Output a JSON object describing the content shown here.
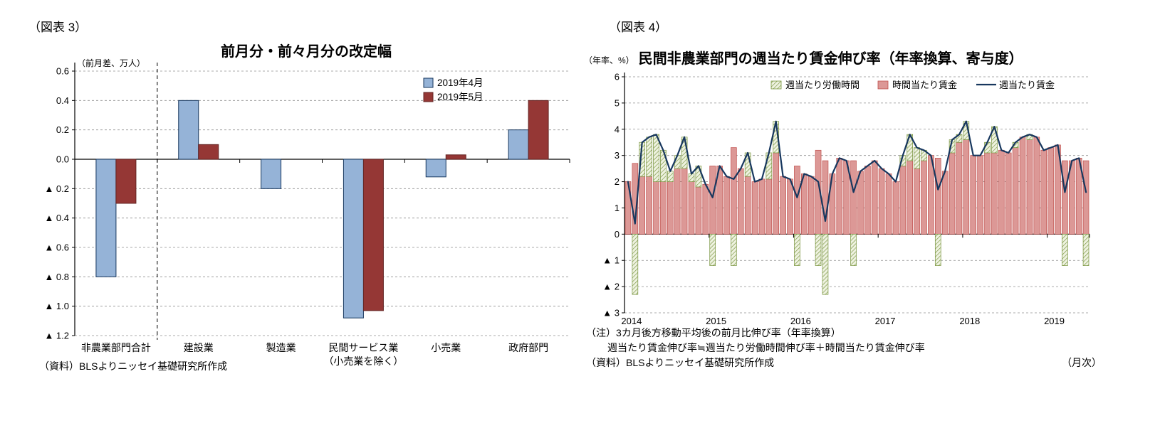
{
  "chart_data": [
    {
      "id": "fig3",
      "type": "bar",
      "panel_label": "（図表 3）",
      "title": "前月分・前々月分の改定幅",
      "y_axis_unit": "（前月差、万人）",
      "negative_prefix": "▲",
      "ylim": [
        -1.2,
        0.6
      ],
      "ytick_step": 0.2,
      "grid": true,
      "legend_position": "top-right",
      "separator_after_category": 0,
      "categories": [
        {
          "label": "非農業部門合計"
        },
        {
          "label": "建設業"
        },
        {
          "label": "製造業"
        },
        {
          "label": "民間サービス業",
          "sublabel": "（小売業を除く）"
        },
        {
          "label": "小売業"
        },
        {
          "label": "政府部門"
        }
      ],
      "series": [
        {
          "name": "2019年4月",
          "color": "#95b3d7",
          "border": "#17375e",
          "values": [
            -0.8,
            0.4,
            -0.2,
            -1.08,
            -0.12,
            0.2
          ]
        },
        {
          "name": "2019年5月",
          "color": "#953735",
          "border": "#632423",
          "values": [
            -0.3,
            0.1,
            0.0,
            -1.03,
            0.03,
            0.4
          ]
        }
      ],
      "source": "（資料）BLSよりニッセイ基礎研究所作成"
    },
    {
      "id": "fig4",
      "type": "stacked-bar-line",
      "panel_label": "（図表 4）",
      "title": "民間非農業部門の週当たり賃金伸び率（年率換算、寄与度）",
      "y_axis_unit": "（年率、%）",
      "x_axis_unit": "（月次）",
      "negative_prefix": "▲",
      "ylim": [
        -3,
        6
      ],
      "ytick_step": 1,
      "grid": true,
      "legend_position": "top",
      "x_start": "2014-01",
      "x_frequency": "monthly",
      "year_labels": [
        "2014",
        "2015",
        "2016",
        "2017",
        "2018",
        "2019"
      ],
      "series": [
        {
          "name": "週当たり労働時間",
          "role": "bar",
          "style": "hatched",
          "color": "#eef2e0",
          "hatch_color": "#77933c",
          "border": "#77933c",
          "values": [
            0.0,
            -2.3,
            1.3,
            1.5,
            1.8,
            1.2,
            0.4,
            0.5,
            1.2,
            0.3,
            0.8,
            0.0,
            -1.2,
            0.0,
            0.0,
            -1.2,
            0.0,
            0.9,
            0.0,
            0.0,
            1.0,
            1.2,
            0.0,
            0.0,
            -1.2,
            0.0,
            0.0,
            -1.2,
            -2.3,
            0.0,
            0.0,
            0.0,
            -1.2,
            0.0,
            0.0,
            0.0,
            0.0,
            0.0,
            0.0,
            0.4,
            1.0,
            0.8,
            0.4,
            0.0,
            -1.2,
            0.0,
            0.5,
            0.3,
            0.7,
            0.0,
            0.0,
            0.4,
            1.0,
            0.0,
            0.0,
            0.2,
            0.0,
            0.2,
            0.0,
            0.0,
            0.0,
            0.0,
            -1.2,
            0.0,
            0.0,
            -1.2
          ]
        },
        {
          "name": "時間当たり賃金",
          "role": "bar",
          "style": "solid",
          "color": "#dc9896",
          "border": "#c0504d",
          "values": [
            2.0,
            2.7,
            2.2,
            2.2,
            2.0,
            2.0,
            2.0,
            2.5,
            2.5,
            2.0,
            1.8,
            1.9,
            2.6,
            2.6,
            2.2,
            3.3,
            2.5,
            2.2,
            2.0,
            2.1,
            2.1,
            3.1,
            2.2,
            2.1,
            2.6,
            2.3,
            2.2,
            3.2,
            2.8,
            2.3,
            2.9,
            2.8,
            2.8,
            2.4,
            2.6,
            2.8,
            2.5,
            2.3,
            2.0,
            2.6,
            2.8,
            2.5,
            2.8,
            3.0,
            2.9,
            2.4,
            3.1,
            3.5,
            3.6,
            3.0,
            3.0,
            3.1,
            3.1,
            3.2,
            3.1,
            3.3,
            3.7,
            3.6,
            3.7,
            3.2,
            3.3,
            3.4,
            2.8,
            2.8,
            2.9,
            2.8
          ]
        },
        {
          "name": "週当たり賃金",
          "role": "line",
          "color": "#17375e",
          "values": [
            2.0,
            0.4,
            3.5,
            3.7,
            3.8,
            3.2,
            2.4,
            3.0,
            3.7,
            2.3,
            2.6,
            1.9,
            1.4,
            2.6,
            2.2,
            2.1,
            2.5,
            3.1,
            2.0,
            2.1,
            3.1,
            4.3,
            2.2,
            2.1,
            1.4,
            2.3,
            2.2,
            2.0,
            0.5,
            2.3,
            2.9,
            2.8,
            1.6,
            2.4,
            2.6,
            2.8,
            2.5,
            2.3,
            2.0,
            3.0,
            3.8,
            3.3,
            3.2,
            3.0,
            1.7,
            2.4,
            3.6,
            3.8,
            4.3,
            3.0,
            3.0,
            3.5,
            4.1,
            3.2,
            3.1,
            3.5,
            3.7,
            3.8,
            3.7,
            3.2,
            3.3,
            3.4,
            1.6,
            2.8,
            2.9,
            1.6
          ]
        }
      ],
      "notes": [
        "（注）3カ月後方移動平均後の前月比伸び率（年率換算）",
        "週当たり賃金伸び率≒週当たり労働時間伸び率＋時間当たり賃金伸び率",
        "（資料）BLSよりニッセイ基礎研究所作成"
      ]
    }
  ]
}
